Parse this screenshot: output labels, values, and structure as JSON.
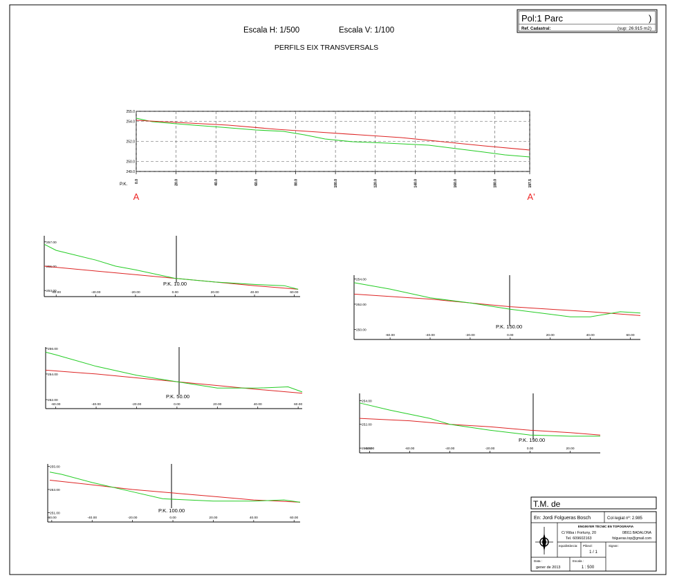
{
  "header": {
    "escala_h": "Escala  H:  1/500",
    "escala_v": "Escala  V:  1/100",
    "title": "PERFILS  EIX  TRANSVERSALS"
  },
  "title_box": {
    "pol_parc": "Pol:1  Parc",
    "close_paren": ")",
    "ref_cadastral": "Ref. Cadastral:",
    "sup": "(sup: 26.915  m2)"
  },
  "colors": {
    "terrain": "#22cc22",
    "design": "#dd2222",
    "grid": "#555555"
  },
  "long_profile": {
    "xlim": [
      0,
      197.5
    ],
    "ylim": [
      249.0,
      255.0
    ],
    "ytick_labels": [
      "255.0",
      "254.0",
      "252.0",
      "250.0",
      "249.0"
    ],
    "ytick_values": [
      255.0,
      254.0,
      252.0,
      250.0,
      249.0
    ],
    "xtick_labels": [
      "0.0",
      "20.0",
      "40.0",
      "60.0",
      "80.0",
      "100.0",
      "120.0",
      "140.0",
      "160.0",
      "180.0",
      "197.5"
    ],
    "xtick_values": [
      0,
      20,
      40,
      60,
      80,
      100,
      120,
      140,
      160,
      180,
      197.5
    ],
    "pk_label": "P.K.",
    "start_label": "A",
    "end_label": "A'"
  },
  "sections": [
    {
      "pk_label": "P.K. 10.00",
      "xlim": [
        -66,
        63
      ],
      "ylim": [
        252.5,
        257.5
      ],
      "xtick_labels": [
        "-60.00",
        "-40.00",
        "-20.00",
        "0.00",
        "20.00",
        "40.00",
        "60.00"
      ],
      "xtick_values": [
        -60,
        -40,
        -20,
        0,
        20,
        40,
        60
      ],
      "ytick_labels": [
        "257.00",
        "255.00",
        "253.00"
      ],
      "ytick_values": [
        257,
        255,
        253
      ],
      "terrain": [
        [
          -66,
          256.8
        ],
        [
          -60,
          256.3
        ],
        [
          -40,
          255.5
        ],
        [
          -30,
          255.0
        ],
        [
          -20,
          254.7
        ],
        [
          0,
          254.0
        ],
        [
          20,
          253.7
        ],
        [
          40,
          253.5
        ],
        [
          55,
          253.4
        ],
        [
          62,
          253.1
        ]
      ],
      "design": [
        [
          -66,
          255.0
        ],
        [
          -40,
          254.6
        ],
        [
          -20,
          254.3
        ],
        [
          0,
          254.0
        ],
        [
          20,
          253.7
        ],
        [
          40,
          253.4
        ],
        [
          62,
          253.1
        ]
      ]
    },
    {
      "pk_label": "P.K. 150.00",
      "xlim": [
        -78,
        65
      ],
      "ylim": [
        249.2,
        254.3
      ],
      "xtick_labels": [
        "-60.00",
        "-40.00",
        "-20.00",
        "0.00",
        "20.00",
        "40.00",
        "60.00"
      ],
      "xtick_values": [
        -60,
        -40,
        -20,
        0,
        20,
        40,
        60
      ],
      "ytick_labels": [
        "254.00",
        "252.00",
        "250.00"
      ],
      "ytick_values": [
        254,
        252,
        250
      ],
      "terrain": [
        [
          -78,
          253.7
        ],
        [
          -60,
          253.2
        ],
        [
          -40,
          252.5
        ],
        [
          -20,
          252.1
        ],
        [
          0,
          251.6
        ],
        [
          20,
          251.2
        ],
        [
          30,
          251.0
        ],
        [
          40,
          251.0
        ],
        [
          55,
          251.4
        ],
        [
          65,
          251.3
        ]
      ],
      "design": [
        [
          -78,
          252.8
        ],
        [
          -40,
          252.4
        ],
        [
          -20,
          252.1
        ],
        [
          0,
          251.8
        ],
        [
          20,
          251.6
        ],
        [
          40,
          251.4
        ],
        [
          65,
          251.1
        ]
      ]
    },
    {
      "pk_label": "P.K. 50.00",
      "xlim": [
        -65,
        62
      ],
      "ylim": [
        251.3,
        256.1
      ],
      "xtick_labels": [
        "-60.00",
        "-40.00",
        "-20.00",
        "0.00",
        "20.00",
        "40.00",
        "60.00"
      ],
      "xtick_values": [
        -60,
        -40,
        -20,
        0,
        20,
        40,
        60
      ],
      "ytick_labels": [
        "256.00",
        "254.00",
        "252.00"
      ],
      "ytick_values": [
        256,
        254,
        252
      ],
      "terrain": [
        [
          -65,
          255.7
        ],
        [
          -60,
          255.5
        ],
        [
          -40,
          254.6
        ],
        [
          -20,
          253.9
        ],
        [
          0,
          253.4
        ],
        [
          20,
          252.9
        ],
        [
          40,
          252.9
        ],
        [
          55,
          253.0
        ],
        [
          62,
          252.6
        ]
      ],
      "design": [
        [
          -65,
          254.3
        ],
        [
          -40,
          254.0
        ],
        [
          -20,
          253.7
        ],
        [
          0,
          253.4
        ],
        [
          20,
          253.1
        ],
        [
          40,
          252.8
        ],
        [
          62,
          252.5
        ]
      ]
    },
    {
      "pk_label": "P.K. 190.00",
      "xlim": [
        -85,
        35
      ],
      "ylim": [
        249.6,
        254.6
      ],
      "xtick_labels": [
        "-80.00",
        "-60.00",
        "-40.00",
        "-20.00",
        "0.00",
        "20.00"
      ],
      "xtick_values": [
        -80,
        -60,
        -40,
        -20,
        0,
        20
      ],
      "ytick_labels": [
        "254.00",
        "252.00",
        "250.00"
      ],
      "ytick_values": [
        254,
        252,
        250
      ],
      "terrain": [
        [
          -85,
          253.8
        ],
        [
          -70,
          253.2
        ],
        [
          -50,
          252.5
        ],
        [
          -40,
          252.0
        ],
        [
          -20,
          251.5
        ],
        [
          0,
          251.1
        ],
        [
          20,
          251.0
        ],
        [
          35,
          251.0
        ]
      ],
      "design": [
        [
          -85,
          252.5
        ],
        [
          -60,
          252.3
        ],
        [
          -40,
          252.0
        ],
        [
          -20,
          251.8
        ],
        [
          0,
          251.5
        ],
        [
          20,
          251.3
        ],
        [
          35,
          251.1
        ]
      ]
    },
    {
      "pk_label": "P.K. 100.00",
      "xlim": [
        -62,
        63
      ],
      "ylim": [
        250.2,
        255.2
      ],
      "xtick_labels": [
        "-60.00",
        "-40.00",
        "-20.00",
        "0.00",
        "20.00",
        "40.00",
        "60.00"
      ],
      "xtick_values": [
        -60,
        -40,
        -20,
        0,
        20,
        40,
        60
      ],
      "ytick_labels": [
        "255.00",
        "253.00",
        "251.00"
      ],
      "ytick_values": [
        255,
        253,
        251
      ],
      "terrain": [
        [
          -61,
          254.5
        ],
        [
          -55,
          254.3
        ],
        [
          -40,
          253.6
        ],
        [
          -20,
          252.8
        ],
        [
          -5,
          252.2
        ],
        [
          20,
          252.0
        ],
        [
          40,
          252.0
        ],
        [
          55,
          252.1
        ],
        [
          63,
          251.9
        ]
      ],
      "design": [
        [
          -61,
          253.8
        ],
        [
          -40,
          253.4
        ],
        [
          -20,
          253.0
        ],
        [
          0,
          252.7
        ],
        [
          20,
          252.4
        ],
        [
          40,
          252.1
        ],
        [
          63,
          251.9
        ]
      ]
    }
  ],
  "cartouche": {
    "tm_de": "T.M.  de",
    "author": "En:  Jordi  Folgueras  Bosch",
    "collegiat": "Col·legiat  nº:  2.985",
    "profession": "ENGINYER  TÈCNIC  EN  TOPOGRAFIA",
    "address": "C/  Riba i Fortuny, 20",
    "city": "08911  BADALONA",
    "phone": "Tel. 609602163",
    "email": "folgueras.top@gmail.com",
    "equidistancia": "equidistància:",
    "plano": "Plànol:",
    "plano_num": "1 / 1",
    "signat": "Signat :",
    "data_label": "Data :",
    "data_value": "gener  de  2013",
    "escala_label": "Escala :",
    "escala_value": "1 : 500"
  }
}
